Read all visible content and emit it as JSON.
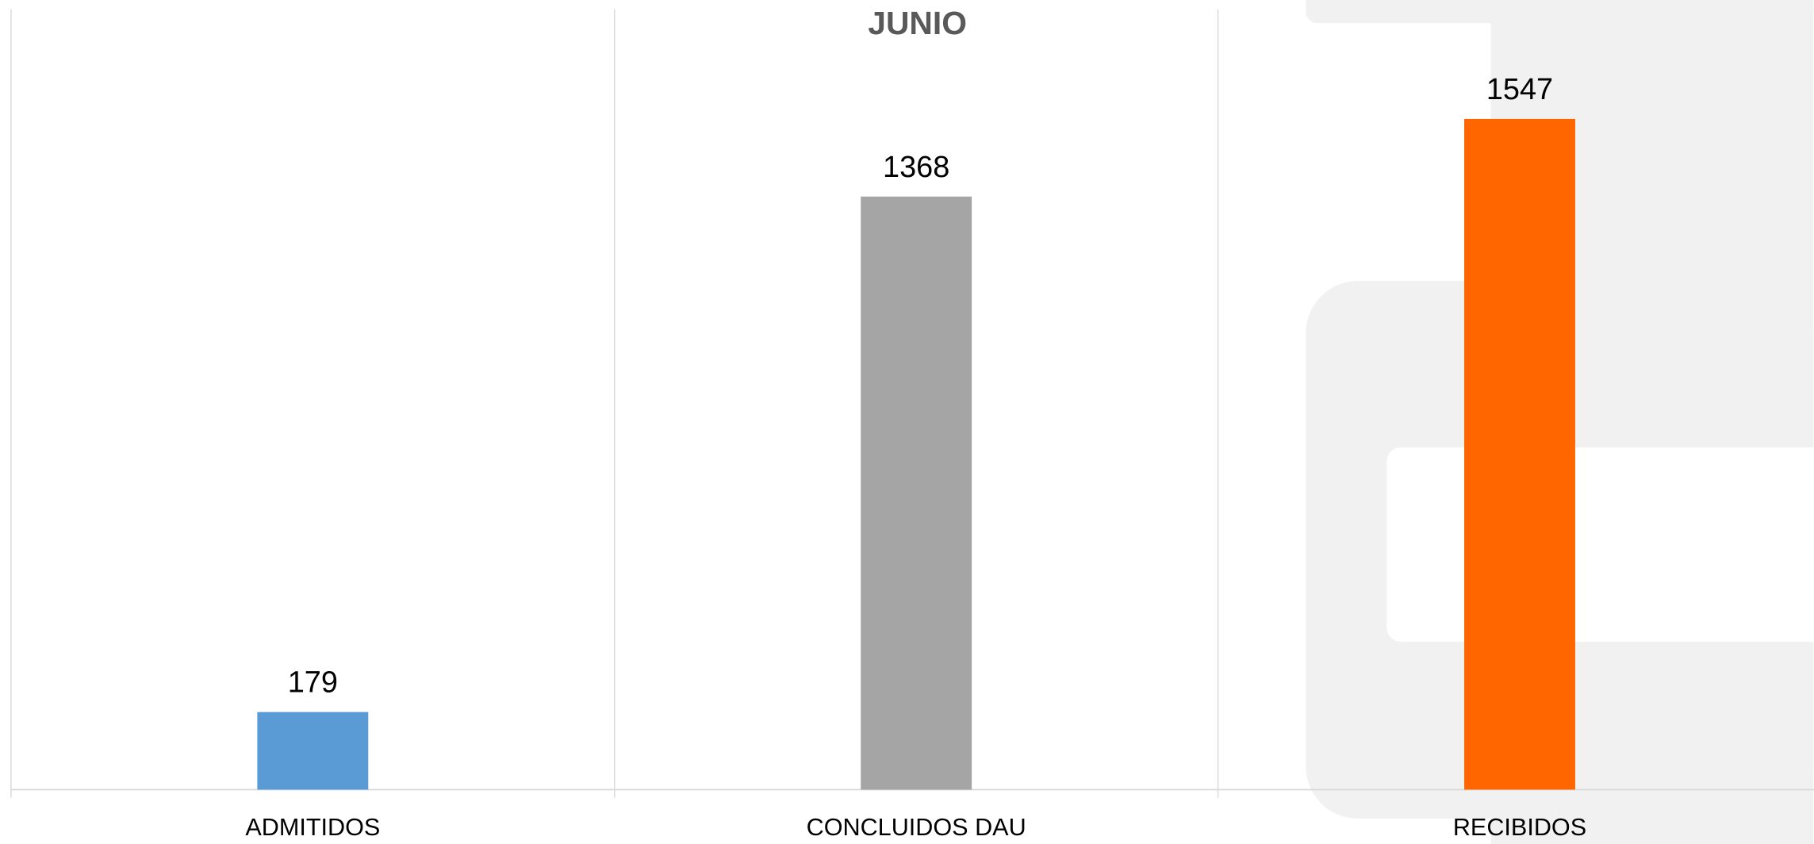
{
  "chart_data": {
    "type": "bar",
    "title": "JUNIO",
    "categories": [
      "ADMITIDOS",
      "CONCLUIDOS DAU",
      "RECIBIDOS"
    ],
    "values": [
      179,
      1368,
      1547
    ],
    "colors": [
      "#5b9bd5",
      "#a5a5a5",
      "#ff6600"
    ],
    "ylim": [
      0,
      1800
    ]
  }
}
